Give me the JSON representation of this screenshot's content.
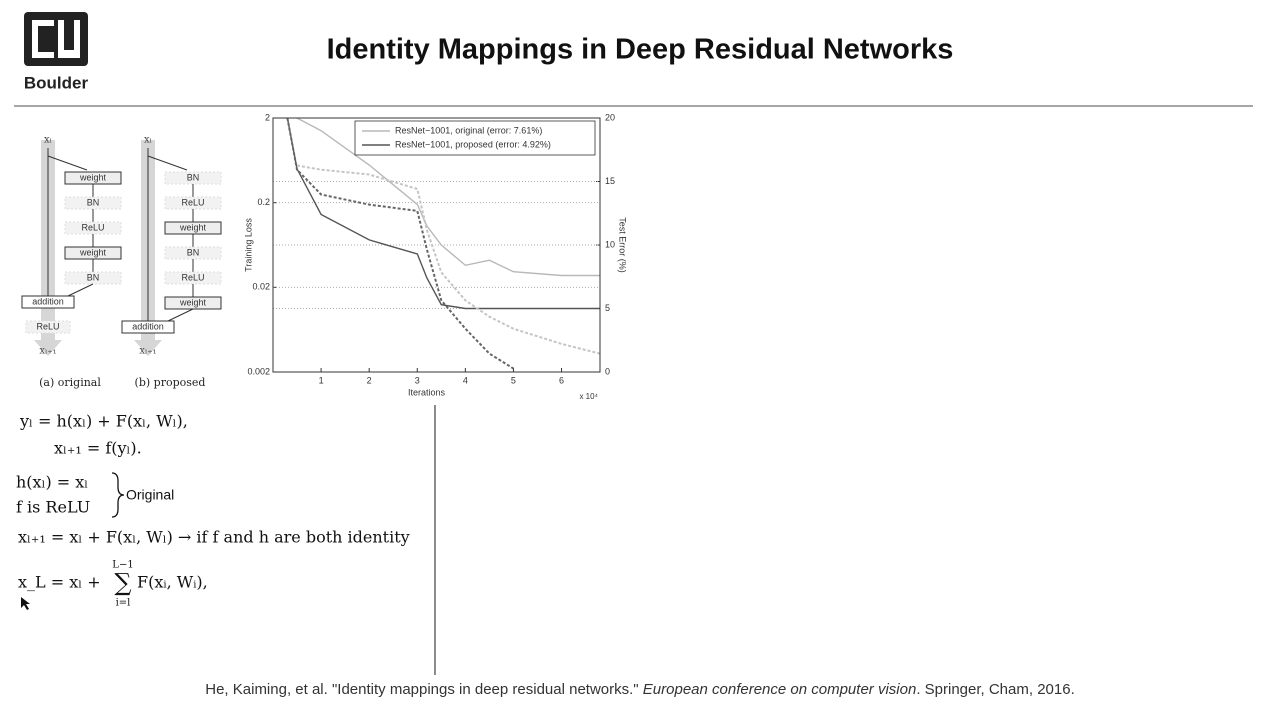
{
  "header": {
    "logo_text": "Boulder",
    "title": "Identity Mappings in Deep Residual Networks"
  },
  "diagrams": [
    {
      "input": "xₗ",
      "blocks": [
        "weight",
        "BN",
        "ReLU",
        "weight",
        "BN"
      ],
      "addition": "addition",
      "after": [
        "ReLU"
      ],
      "output": "xₗ₊₁",
      "caption": "(a) original"
    },
    {
      "input": "xₗ",
      "blocks": [
        "BN",
        "ReLU",
        "weight",
        "BN",
        "ReLU",
        "weight"
      ],
      "addition": "addition",
      "after": [],
      "output": "xₗ₊₁",
      "caption": "(b) proposed"
    }
  ],
  "chart_data": {
    "type": "line",
    "x_label": "Iterations",
    "x_multiplier": "x 10⁴",
    "y_label": "Training Loss",
    "y2_label": "Test Error (%)",
    "x": [
      0.3,
      0.5,
      1,
      2,
      3,
      3.2,
      3.5,
      4,
      4.5,
      5,
      6,
      6.8
    ],
    "xlim": [
      0,
      6.8
    ],
    "xticks": [
      1,
      2,
      3,
      4,
      5,
      6
    ],
    "ylim": [
      0.002,
      2
    ],
    "yticks": [
      2,
      0.2,
      0.02,
      0.002
    ],
    "log_y": true,
    "y2lim": [
      0,
      20
    ],
    "y2ticks": [
      0,
      5,
      10,
      15,
      20
    ],
    "grid": true,
    "series": [
      {
        "name": "ResNet−1001, original (error: 7.61%)",
        "color": "#b8b8b8",
        "axis": "y2",
        "style": "solid",
        "values": [
          null,
          20,
          19,
          16.3,
          13.2,
          11.5,
          10,
          8.4,
          8.8,
          7.9,
          7.6,
          7.6
        ]
      },
      {
        "name": "ResNet−1001, proposed (error: 4.92%)",
        "color": "#555555",
        "axis": "y2",
        "style": "solid",
        "values": [
          20,
          16,
          12.4,
          10.4,
          9.3,
          7.4,
          5.3,
          5,
          5,
          5,
          5,
          5
        ]
      },
      {
        "color": "#c4c4c4",
        "axis": "y",
        "style": "dashed",
        "values": [
          null,
          0.55,
          0.49,
          0.43,
          0.29,
          0.095,
          0.03,
          0.014,
          0.009,
          0.0065,
          0.0043,
          0.0033
        ]
      },
      {
        "color": "#666666",
        "axis": "y",
        "style": "dashed",
        "values": [
          2,
          0.49,
          0.25,
          0.19,
          0.16,
          0.056,
          0.014,
          0.0065,
          0.0033,
          0.0022,
          null,
          null
        ]
      }
    ]
  },
  "equations": {
    "line1": "yₗ = h(xₗ) + F(xₗ, Wₗ),",
    "line2": "xₗ₊₁ = f(yₗ).",
    "case1": "h(xₗ) = xₗ",
    "case2": "f is ReLU",
    "case_label": "Original",
    "line3": "xₗ₊₁ = xₗ + F(xₗ, Wₗ) → if f and h are both identity",
    "line4_lhs": "x_L = xₗ +",
    "line4_sup": "L−1",
    "line4_sub": "i=l",
    "line4_rhs": "F(xᵢ, Wᵢ),"
  },
  "citation": {
    "authors": "He, Kaiming, et al. \"Identity mappings in deep residual networks.\" ",
    "venue": "European conference on computer vision",
    "rest": ". Springer, Cham, 2016."
  }
}
